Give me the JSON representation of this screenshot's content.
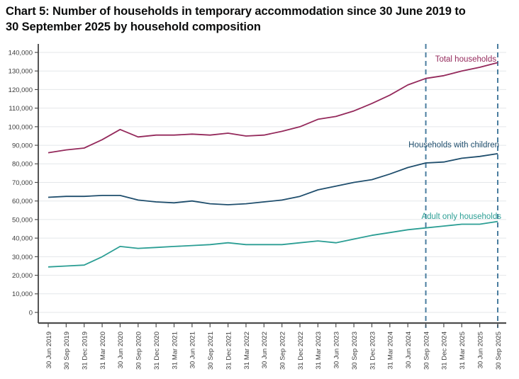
{
  "title": {
    "line1": "Chart 5: Number of households in temporary accommodation since 30 June 2019 to",
    "line2": "30 September 2025 by household composition",
    "full": "Chart 5: Number of households in temporary accommodation since 30 June 2019 to 30 September 2025 by household composition"
  },
  "chart_data": {
    "type": "line",
    "categories": [
      "30 Jun 2019",
      "30 Sep 2019",
      "31 Dec 2019",
      "31 Mar 2020",
      "30 Jun 2020",
      "30 Sep 2020",
      "31 Dec 2020",
      "31 Mar 2021",
      "30 Jun 2021",
      "30 Sep 2021",
      "31 Dec 2021",
      "31 Mar 2022",
      "30 Jun 2022",
      "30 Sep 2022",
      "31 Dec 2022",
      "31 Mar 2023",
      "30 Jun 2023",
      "30 Sep 2023",
      "31 Dec 2023",
      "31 Mar 2024",
      "30 Jun 2024",
      "30 Sep 2024",
      "31 Dec 2024",
      "31 Mar 2025",
      "30 Jun 2025",
      "30 Sep 2025"
    ],
    "series": [
      {
        "name": "Total households",
        "color": "#94295b",
        "values": [
          86000,
          87500,
          88500,
          93000,
          98500,
          94500,
          95500,
          95500,
          96000,
          95500,
          96500,
          95000,
          95500,
          97500,
          100000,
          104000,
          105500,
          108500,
          112500,
          117000,
          122500,
          126000,
          127500,
          130000,
          132000,
          134500
        ]
      },
      {
        "name": "Households with children",
        "color": "#1f4e6d",
        "values": [
          62000,
          62500,
          62500,
          63000,
          63000,
          60500,
          59500,
          59000,
          60000,
          58500,
          58000,
          58500,
          59500,
          60500,
          62500,
          66000,
          68000,
          70000,
          71500,
          74500,
          78000,
          80500,
          81000,
          83000,
          84000,
          85500
        ]
      },
      {
        "name": "Adult only households",
        "color": "#2b9e94",
        "values": [
          24500,
          25000,
          25500,
          30000,
          35500,
          34500,
          35000,
          35500,
          36000,
          36500,
          37500,
          36500,
          36500,
          36500,
          37500,
          38500,
          37500,
          39500,
          41500,
          43000,
          44500,
          45500,
          46500,
          47500,
          47500,
          49000
        ]
      }
    ],
    "ylim": [
      0,
      140000
    ],
    "ytick_step": 10000,
    "ytick_labels": [
      "0",
      "10,000",
      "20,000",
      "30,000",
      "40,000",
      "50,000",
      "60,000",
      "70,000",
      "80,000",
      "90,000",
      "100,000",
      "110,000",
      "120,000",
      "130,000",
      "140,000"
    ],
    "grid": true,
    "legend_position": "labels-inline-right",
    "reference_lines": [
      "30 Sep 2024",
      "30 Sep 2025"
    ],
    "xlabel": "",
    "ylabel": ""
  },
  "colors": {
    "total_series": "#94295b",
    "children_series": "#1f4e6d",
    "adult_series": "#2b9e94",
    "reference_dashed": "#4a7d9f",
    "gridline": "#e4e7ea",
    "axis": "#4d4d4d",
    "tick_text": "#3c3c3c",
    "title_text": "#0b0c0c",
    "background": "#ffffff"
  }
}
